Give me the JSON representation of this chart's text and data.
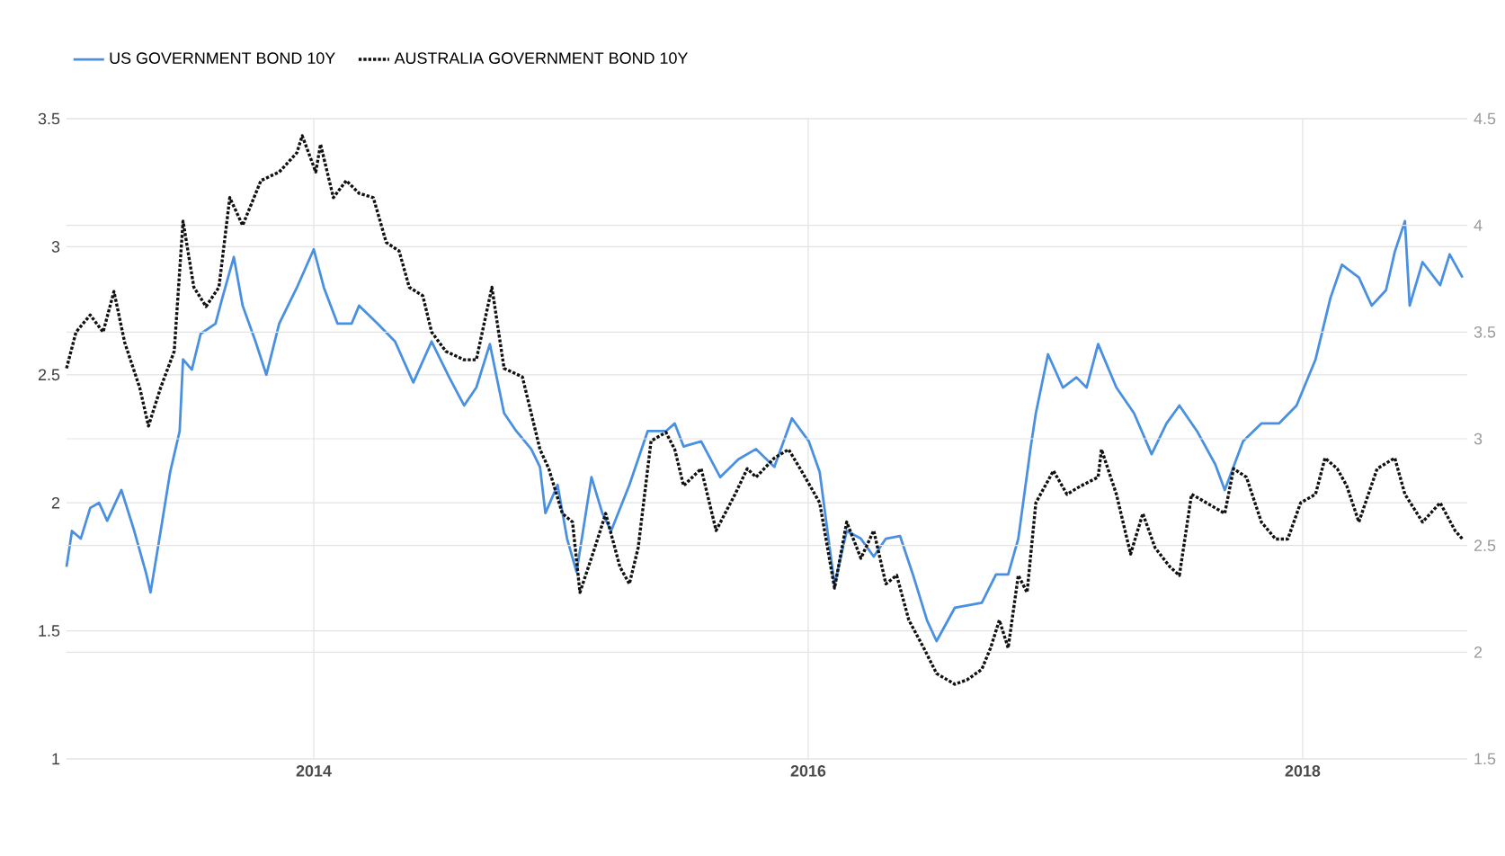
{
  "chart_data": {
    "type": "line",
    "series": [
      {
        "name": "US GOVERNMENT BOND 10Y",
        "color": "#4a90e2",
        "line_style": "solid",
        "axis": "y",
        "x": [
          "2013-01-01",
          "2013-01-09",
          "2013-01-22",
          "2013-02-05",
          "2013-02-18",
          "2013-03-02",
          "2013-03-23",
          "2013-04-11",
          "2013-04-29",
          "2013-05-05",
          "2013-05-20",
          "2013-06-03",
          "2013-06-17",
          "2013-06-22",
          "2013-07-05",
          "2013-07-18",
          "2013-08-09",
          "2013-08-19",
          "2013-09-05",
          "2013-09-18",
          "2013-10-07",
          "2013-10-23",
          "2013-11-11",
          "2013-12-07",
          "2014-01-01",
          "2014-01-16",
          "2014-02-05",
          "2014-02-26",
          "2014-03-09",
          "2014-04-05",
          "2014-05-01",
          "2014-05-28",
          "2014-06-24",
          "2014-07-20",
          "2014-08-11",
          "2014-08-29",
          "2014-09-18",
          "2014-10-09",
          "2014-10-27",
          "2014-11-18",
          "2014-12-01",
          "2014-12-09",
          "2014-12-27",
          "2015-01-10",
          "2015-01-24",
          "2015-02-15",
          "2015-03-03",
          "2015-03-16",
          "2015-04-12",
          "2015-05-09",
          "2015-06-05",
          "2015-06-18",
          "2015-07-01",
          "2015-07-27",
          "2015-08-24",
          "2015-09-20",
          "2015-10-16",
          "2015-11-12",
          "2015-12-08",
          "2016-01-02",
          "2016-01-18",
          "2016-02-09",
          "2016-02-27",
          "2016-03-19",
          "2016-04-07",
          "2016-04-25",
          "2016-05-16",
          "2016-06-04",
          "2016-06-25",
          "2016-07-09",
          "2016-08-05",
          "2016-09-14",
          "2016-10-05",
          "2016-10-23",
          "2016-11-07",
          "2016-11-25",
          "2016-12-03",
          "2016-12-21",
          "2017-01-12",
          "2017-02-01",
          "2017-02-16",
          "2017-03-05",
          "2017-04-01",
          "2017-04-27",
          "2017-05-23",
          "2017-06-14",
          "2017-07-03",
          "2017-07-29",
          "2017-08-25",
          "2017-09-08",
          "2017-10-05",
          "2017-11-01",
          "2017-11-27",
          "2017-12-23",
          "2018-01-20",
          "2018-02-11",
          "2018-02-28",
          "2018-03-25",
          "2018-04-13",
          "2018-05-04",
          "2018-05-17",
          "2018-06-01",
          "2018-06-08",
          "2018-06-27",
          "2018-07-23",
          "2018-08-06",
          "2018-08-25"
        ],
        "values": [
          1.75,
          1.89,
          1.86,
          1.98,
          2.0,
          1.93,
          2.05,
          1.89,
          1.72,
          1.65,
          1.89,
          2.12,
          2.28,
          2.56,
          2.52,
          2.66,
          2.7,
          2.8,
          2.96,
          2.77,
          2.63,
          2.5,
          2.7,
          2.84,
          2.99,
          2.84,
          2.7,
          2.7,
          2.77,
          2.7,
          2.63,
          2.47,
          2.63,
          2.49,
          2.38,
          2.45,
          2.62,
          2.35,
          2.28,
          2.21,
          2.14,
          1.96,
          2.07,
          1.86,
          1.73,
          2.1,
          1.96,
          1.89,
          2.07,
          2.28,
          2.28,
          2.31,
          2.22,
          2.24,
          2.1,
          2.17,
          2.21,
          2.14,
          2.33,
          2.24,
          2.12,
          1.68,
          1.89,
          1.86,
          1.79,
          1.86,
          1.87,
          1.72,
          1.54,
          1.46,
          1.59,
          1.61,
          1.72,
          1.72,
          1.86,
          2.21,
          2.35,
          2.58,
          2.45,
          2.49,
          2.45,
          2.62,
          2.45,
          2.35,
          2.19,
          2.31,
          2.38,
          2.28,
          2.15,
          2.05,
          2.24,
          2.31,
          2.31,
          2.38,
          2.56,
          2.8,
          2.93,
          2.88,
          2.77,
          2.83,
          2.98,
          3.1,
          2.77,
          2.94,
          2.85,
          2.97,
          2.88
        ]
      },
      {
        "name": "AUSTRALIA GOVERNMENT BOND 10Y",
        "color": "#111111",
        "line_style": "dotted",
        "axis": "y2",
        "x": [
          "2013-01-01",
          "2013-01-15",
          "2013-02-05",
          "2013-02-24",
          "2013-03-12",
          "2013-03-28",
          "2013-04-19",
          "2013-05-02",
          "2013-05-20",
          "2013-06-09",
          "2013-06-22",
          "2013-07-08",
          "2013-07-26",
          "2013-08-14",
          "2013-08-30",
          "2013-09-18",
          "2013-10-15",
          "2013-11-11",
          "2013-12-07",
          "2013-12-15",
          "2014-01-04",
          "2014-01-11",
          "2014-01-30",
          "2014-02-18",
          "2014-03-09",
          "2014-03-30",
          "2014-04-18",
          "2014-05-07",
          "2014-05-22",
          "2014-06-11",
          "2014-06-24",
          "2014-07-15",
          "2014-08-11",
          "2014-08-29",
          "2014-09-21",
          "2014-10-09",
          "2014-11-05",
          "2014-12-01",
          "2014-12-14",
          "2015-01-03",
          "2015-01-18",
          "2015-01-29",
          "2015-02-20",
          "2015-03-08",
          "2015-03-29",
          "2015-04-12",
          "2015-04-25",
          "2015-05-14",
          "2015-06-05",
          "2015-06-18",
          "2015-07-01",
          "2015-07-27",
          "2015-08-18",
          "2015-09-15",
          "2015-10-03",
          "2015-10-16",
          "2015-11-12",
          "2015-12-03",
          "2015-12-22",
          "2016-01-18",
          "2016-02-09",
          "2016-02-27",
          "2016-03-19",
          "2016-04-07",
          "2016-04-25",
          "2016-05-11",
          "2016-05-29",
          "2016-06-20",
          "2016-07-09",
          "2016-08-05",
          "2016-08-23",
          "2016-09-14",
          "2016-09-27",
          "2016-10-10",
          "2016-10-23",
          "2016-11-07",
          "2016-11-20",
          "2016-12-03",
          "2016-12-29",
          "2017-01-18",
          "2017-02-08",
          "2017-03-05",
          "2017-03-10",
          "2017-04-01",
          "2017-04-22",
          "2017-05-10",
          "2017-05-28",
          "2017-06-19",
          "2017-07-03",
          "2017-07-21",
          "2017-08-12",
          "2017-09-08",
          "2017-09-21",
          "2017-10-10",
          "2017-11-01",
          "2017-11-22",
          "2017-12-10",
          "2017-12-29",
          "2018-01-20",
          "2018-02-03",
          "2018-02-21",
          "2018-03-07",
          "2018-03-25",
          "2018-04-21",
          "2018-05-17",
          "2018-06-01",
          "2018-06-27",
          "2018-07-23",
          "2018-08-14",
          "2018-08-25"
        ],
        "values": [
          3.33,
          3.5,
          3.58,
          3.5,
          3.69,
          3.45,
          3.24,
          3.06,
          3.24,
          3.41,
          4.02,
          3.71,
          3.62,
          3.71,
          4.13,
          4.0,
          4.21,
          4.25,
          4.34,
          4.42,
          4.25,
          4.38,
          4.13,
          4.21,
          4.15,
          4.13,
          3.92,
          3.88,
          3.71,
          3.67,
          3.5,
          3.41,
          3.37,
          3.37,
          3.71,
          3.33,
          3.29,
          2.95,
          2.86,
          2.65,
          2.61,
          2.28,
          2.49,
          2.65,
          2.4,
          2.32,
          2.49,
          2.99,
          3.03,
          2.95,
          2.78,
          2.86,
          2.57,
          2.74,
          2.86,
          2.82,
          2.91,
          2.95,
          2.85,
          2.7,
          2.3,
          2.61,
          2.44,
          2.57,
          2.32,
          2.36,
          2.15,
          2.02,
          1.9,
          1.85,
          1.87,
          1.92,
          2.02,
          2.15,
          2.02,
          2.36,
          2.28,
          2.7,
          2.85,
          2.74,
          2.78,
          2.82,
          2.95,
          2.74,
          2.46,
          2.65,
          2.49,
          2.4,
          2.36,
          2.74,
          2.7,
          2.65,
          2.86,
          2.82,
          2.61,
          2.53,
          2.53,
          2.7,
          2.74,
          2.91,
          2.86,
          2.78,
          2.61,
          2.86,
          2.91,
          2.74,
          2.61,
          2.7,
          2.57,
          2.53
        ]
      }
    ],
    "xlim": [
      "2013-01-01",
      "2018-09-01"
    ],
    "xticks": [
      "2014",
      "2016",
      "2018"
    ],
    "ylim": [
      1,
      3.5
    ],
    "yticks": [
      1,
      1.5,
      2,
      2.5,
      3,
      3.5
    ],
    "y2lim": [
      1.5,
      4.5
    ],
    "y2ticks": [
      1.5,
      2,
      2.5,
      3,
      3.5,
      4,
      4.5
    ],
    "grid": true,
    "legend": "top left"
  }
}
